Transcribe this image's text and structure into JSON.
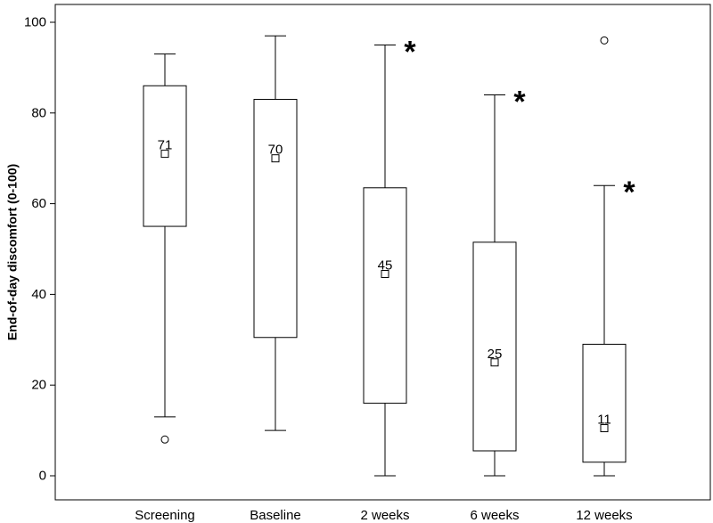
{
  "chart_data": {
    "type": "boxplot",
    "title": "",
    "xlabel": "",
    "ylabel": "End-of-day discomfort (0-100)",
    "ylim": [
      0,
      100
    ],
    "yticks": [
      0,
      20,
      40,
      60,
      80,
      100
    ],
    "grid": false,
    "categories": [
      "Screening",
      "Baseline",
      "2 weeks",
      "6 weeks",
      "12 weeks"
    ],
    "boxes": [
      {
        "category": "Screening",
        "whisker_low": 13,
        "q1": 55,
        "q3": 86,
        "whisker_high": 93,
        "mean": 71,
        "mean_label": "71",
        "outliers": [
          8
        ],
        "significant": false
      },
      {
        "category": "Baseline",
        "whisker_low": 10,
        "q1": 30.5,
        "q3": 83,
        "whisker_high": 97,
        "mean": 70,
        "mean_label": "70",
        "outliers": [],
        "significant": false
      },
      {
        "category": "2 weeks",
        "whisker_low": 0,
        "q1": 16,
        "q3": 63.5,
        "whisker_high": 95,
        "mean": 44.5,
        "mean_label": "45",
        "outliers": [],
        "significant": true
      },
      {
        "category": "6 weeks",
        "whisker_low": 0,
        "q1": 5.5,
        "q3": 51.5,
        "whisker_high": 84,
        "mean": 25,
        "mean_label": "25",
        "outliers": [],
        "significant": true
      },
      {
        "category": "12 weeks",
        "whisker_low": 0,
        "q1": 3,
        "q3": 29,
        "whisker_high": 64,
        "mean": 10.5,
        "mean_label": "11",
        "outliers": [
          96
        ],
        "significant": true
      }
    ],
    "significance_marker": "*"
  }
}
